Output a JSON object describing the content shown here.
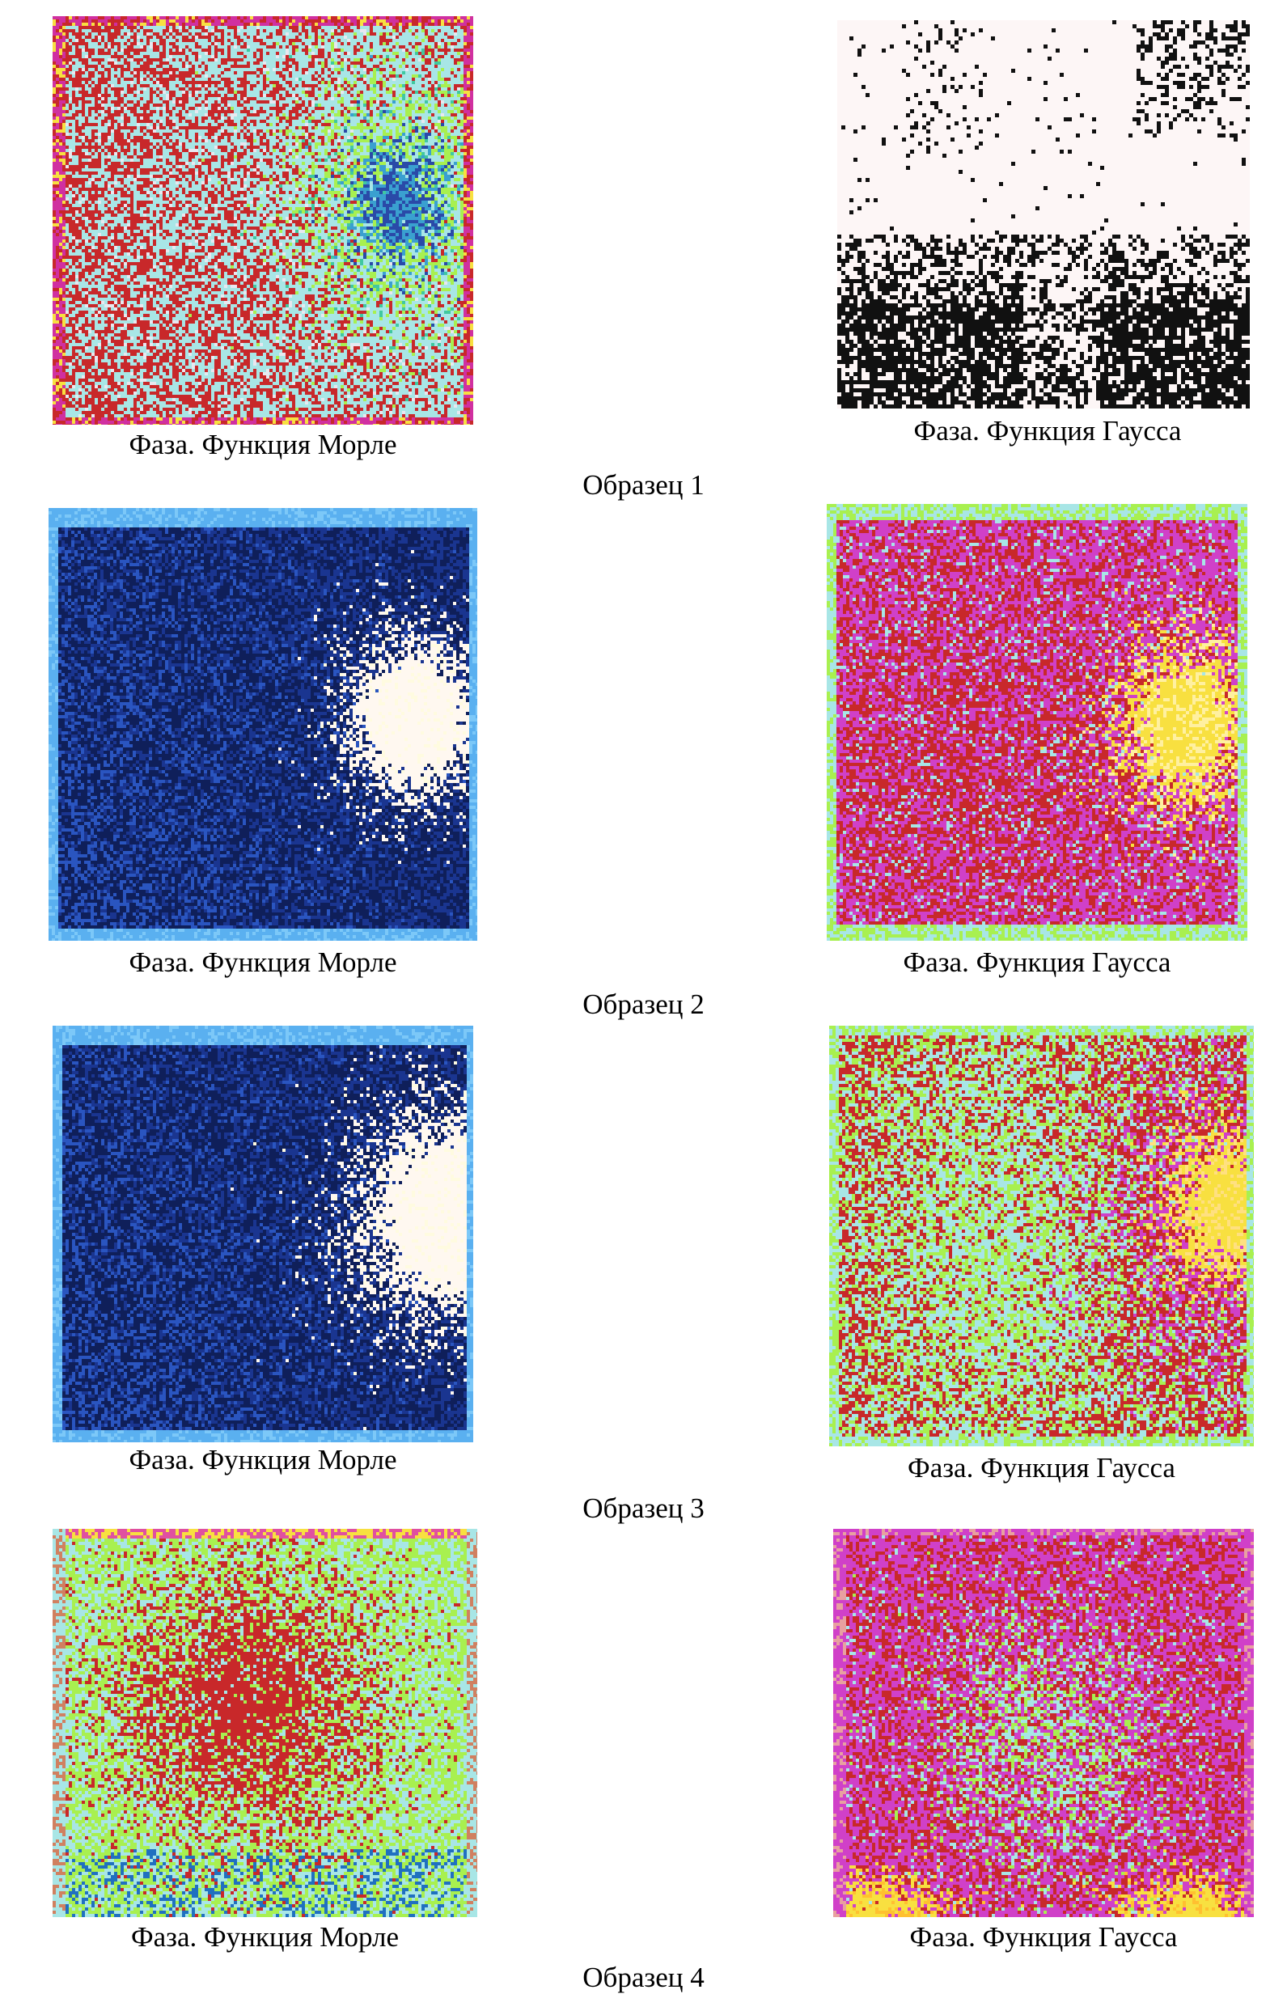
{
  "figure": {
    "samples": [
      {
        "title": "Образец 1",
        "left": {
          "caption": "Фаза. Функция Морле",
          "palette": "rainbow-red-dominant",
          "hot_spot": "blue-center"
        },
        "right": {
          "caption": "Фаза. Функция Гаусса",
          "palette": "black-on-white-dots"
        }
      },
      {
        "title": "Образец 2",
        "left": {
          "caption": "Фаза. Функция Морле",
          "palette": "dark-blue",
          "hot_spot": "white-center"
        },
        "right": {
          "caption": "Фаза. Функция Гаусса",
          "palette": "magenta-red",
          "hot_spot": "yellow-center"
        }
      },
      {
        "title": "Образец 3",
        "left": {
          "caption": "Фаза. Функция Морле",
          "palette": "dark-blue",
          "hot_spot": "white-center"
        },
        "right": {
          "caption": "Фаза. Функция Гаусса",
          "palette": "cyan-green-red",
          "hot_spot": "yellow-center"
        }
      },
      {
        "title": "Образец 4",
        "left": {
          "caption": "Фаза. Функция Морле",
          "palette": "green-cyan-red-center"
        },
        "right": {
          "caption": "Фаза. Функция Гаусса",
          "palette": "magenta-red-green-center"
        }
      }
    ],
    "colors": {
      "red": "#c8282a",
      "cyan": "#a8e6e6",
      "green": "#a8f050",
      "blue": "#2a4aa8",
      "dark_navy": "#0f1f5a",
      "magenta": "#d040c8",
      "yellow": "#f8e040",
      "white": "#fff8f0",
      "black": "#111111"
    }
  }
}
